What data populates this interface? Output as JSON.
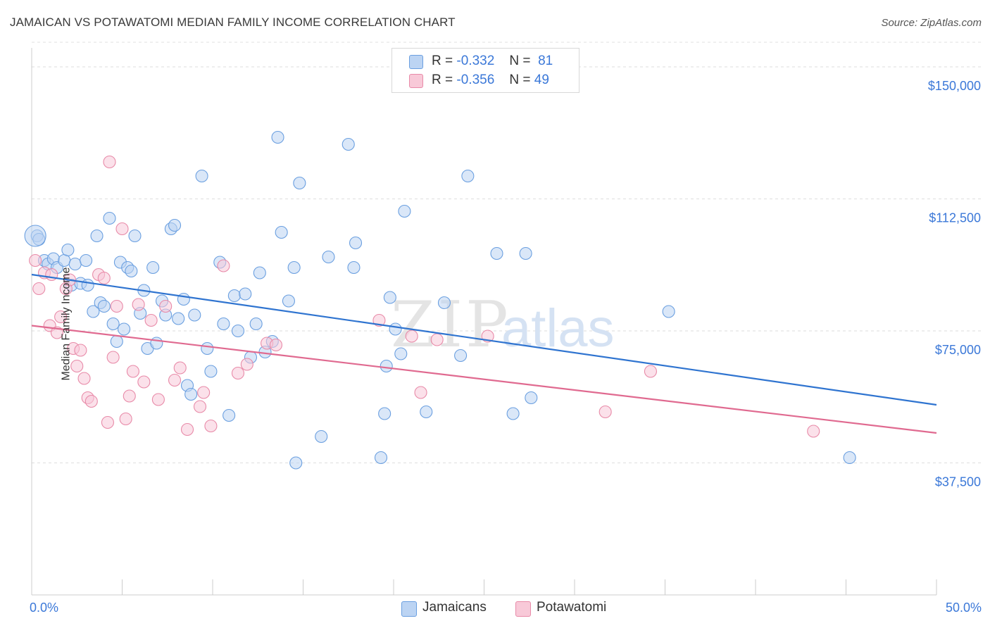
{
  "header": {
    "title": "JAMAICAN VS POTAWATOMI MEDIAN FAMILY INCOME CORRELATION CHART",
    "source": "Source: ZipAtlas.com"
  },
  "legend": {
    "rows": [
      {
        "r_label": "R =",
        "r_value": "-0.332",
        "n_label": "N =",
        "n_value": "81",
        "color": "#a9c8f0"
      },
      {
        "r_label": "R =",
        "r_value": "-0.356",
        "n_label": "N =",
        "n_value": "49",
        "color": "#f5b8cb"
      }
    ]
  },
  "chart_data": {
    "type": "scatter",
    "ylabel": "Median Family Income",
    "xlim": [
      0,
      50
    ],
    "ylim": [
      0,
      157000
    ],
    "x_tick_labels": [
      "0.0%",
      "50.0%"
    ],
    "y_ticks": [
      37500,
      75000,
      112500,
      150000
    ],
    "y_tick_labels": [
      "$37,500",
      "$75,000",
      "$112,500",
      "$150,000"
    ],
    "watermark": "ZIPatlas",
    "series": [
      {
        "name": "Jamaicans",
        "color": "#6a9fe0",
        "fill": "#bcd4f3",
        "trend": {
          "x": [
            0,
            50
          ],
          "y": [
            91000,
            54000
          ],
          "color": "#2f74d0"
        },
        "points": [
          [
            0.3,
            102000
          ],
          [
            0.4,
            101000
          ],
          [
            0.7,
            95000
          ],
          [
            0.9,
            94000
          ],
          [
            1.2,
            95500
          ],
          [
            1.4,
            93000
          ],
          [
            1.8,
            95000
          ],
          [
            2.0,
            98000
          ],
          [
            2.2,
            88000
          ],
          [
            2.4,
            94000
          ],
          [
            2.7,
            88500
          ],
          [
            3.0,
            95000
          ],
          [
            3.1,
            88000
          ],
          [
            3.4,
            80500
          ],
          [
            3.6,
            102000
          ],
          [
            3.8,
            83000
          ],
          [
            4.0,
            82000
          ],
          [
            4.3,
            107000
          ],
          [
            4.5,
            77000
          ],
          [
            4.7,
            72000
          ],
          [
            4.9,
            94500
          ],
          [
            5.1,
            75500
          ],
          [
            5.3,
            93000
          ],
          [
            5.5,
            92000
          ],
          [
            5.7,
            102000
          ],
          [
            6.0,
            80000
          ],
          [
            6.2,
            86500
          ],
          [
            6.4,
            70000
          ],
          [
            6.7,
            93000
          ],
          [
            6.9,
            71500
          ],
          [
            7.2,
            83500
          ],
          [
            7.4,
            79500
          ],
          [
            7.7,
            104000
          ],
          [
            7.9,
            105000
          ],
          [
            8.1,
            78500
          ],
          [
            8.4,
            84000
          ],
          [
            8.6,
            59500
          ],
          [
            8.8,
            57000
          ],
          [
            9.0,
            79500
          ],
          [
            9.4,
            119000
          ],
          [
            9.7,
            70000
          ],
          [
            9.9,
            63500
          ],
          [
            10.4,
            94500
          ],
          [
            10.6,
            77000
          ],
          [
            10.9,
            51000
          ],
          [
            11.2,
            85000
          ],
          [
            11.4,
            75000
          ],
          [
            11.8,
            85500
          ],
          [
            12.1,
            67500
          ],
          [
            12.4,
            77000
          ],
          [
            12.6,
            91500
          ],
          [
            12.9,
            69000
          ],
          [
            13.3,
            72000
          ],
          [
            13.6,
            130000
          ],
          [
            13.8,
            103000
          ],
          [
            14.2,
            83500
          ],
          [
            14.5,
            93000
          ],
          [
            14.6,
            37500
          ],
          [
            14.8,
            117000
          ],
          [
            16.0,
            45000
          ],
          [
            16.4,
            96000
          ],
          [
            17.5,
            128000
          ],
          [
            17.8,
            93000
          ],
          [
            17.9,
            100000
          ],
          [
            19.3,
            39000
          ],
          [
            19.5,
            51500
          ],
          [
            19.6,
            65000
          ],
          [
            19.8,
            84500
          ],
          [
            20.1,
            75500
          ],
          [
            20.4,
            68500
          ],
          [
            20.6,
            109000
          ],
          [
            21.8,
            52000
          ],
          [
            22.8,
            83000
          ],
          [
            23.7,
            68000
          ],
          [
            24.1,
            119000
          ],
          [
            25.7,
            97000
          ],
          [
            26.6,
            51500
          ],
          [
            27.3,
            97000
          ],
          [
            27.6,
            56000
          ],
          [
            35.2,
            80500
          ],
          [
            45.2,
            39000
          ]
        ]
      },
      {
        "name": "Potawatomi",
        "color": "#e88aa8",
        "fill": "#f8c9d8",
        "trend": {
          "x": [
            0,
            50
          ],
          "y": [
            76500,
            46000
          ],
          "color": "#e06a90"
        },
        "points": [
          [
            0.2,
            95000
          ],
          [
            0.4,
            87000
          ],
          [
            0.7,
            91500
          ],
          [
            1.0,
            76500
          ],
          [
            1.1,
            91000
          ],
          [
            1.4,
            74500
          ],
          [
            1.6,
            79000
          ],
          [
            1.9,
            87000
          ],
          [
            2.1,
            89500
          ],
          [
            2.3,
            70000
          ],
          [
            2.5,
            65000
          ],
          [
            2.7,
            69500
          ],
          [
            2.9,
            61500
          ],
          [
            3.1,
            56000
          ],
          [
            3.3,
            55000
          ],
          [
            3.7,
            91000
          ],
          [
            4.0,
            90000
          ],
          [
            4.2,
            49000
          ],
          [
            4.3,
            123000
          ],
          [
            4.5,
            67500
          ],
          [
            4.7,
            82000
          ],
          [
            5.0,
            104000
          ],
          [
            5.2,
            50000
          ],
          [
            5.4,
            56500
          ],
          [
            5.6,
            63500
          ],
          [
            5.9,
            82500
          ],
          [
            6.2,
            60500
          ],
          [
            6.6,
            78000
          ],
          [
            7.0,
            55500
          ],
          [
            7.4,
            82000
          ],
          [
            7.9,
            61000
          ],
          [
            8.2,
            64500
          ],
          [
            8.6,
            47000
          ],
          [
            9.3,
            53500
          ],
          [
            9.5,
            57500
          ],
          [
            9.9,
            48000
          ],
          [
            10.6,
            93500
          ],
          [
            11.4,
            63000
          ],
          [
            11.9,
            65500
          ],
          [
            13.0,
            71500
          ],
          [
            13.5,
            71000
          ],
          [
            19.2,
            78000
          ],
          [
            21.0,
            73500
          ],
          [
            21.5,
            57500
          ],
          [
            22.4,
            72500
          ],
          [
            25.2,
            73500
          ],
          [
            31.7,
            52000
          ],
          [
            34.2,
            63500
          ],
          [
            43.2,
            46500
          ]
        ]
      }
    ]
  }
}
